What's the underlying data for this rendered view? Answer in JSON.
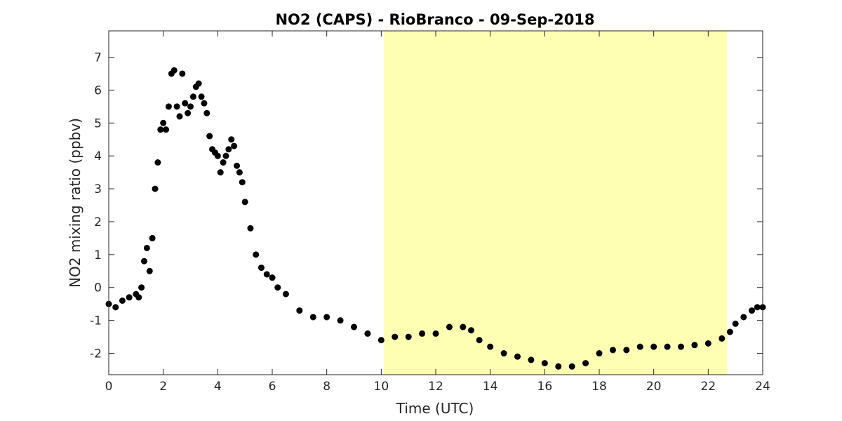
{
  "chart_data": {
    "type": "scatter",
    "title": "NO2 (CAPS) - RioBranco - 09-Sep-2018",
    "xlabel": "Time (UTC)",
    "ylabel": "NO2 mixing ratio (ppbv)",
    "xlim": [
      0,
      24
    ],
    "ylim": [
      -2.65,
      7.8
    ],
    "grid": false,
    "xticks": [
      0,
      2,
      4,
      6,
      8,
      10,
      12,
      14,
      16,
      18,
      20,
      22,
      24
    ],
    "yticks": [
      -2,
      -1,
      0,
      1,
      2,
      3,
      4,
      5,
      6,
      7
    ],
    "highlight_band": {
      "x_start": 10.1,
      "x_end": 22.7,
      "color": "#ffffb3"
    },
    "marker_color": "#000000",
    "series": [
      {
        "x": [
          0.0,
          0.25,
          0.5,
          0.75,
          1.0,
          1.1,
          1.2,
          1.3,
          1.4,
          1.5,
          1.6,
          1.7,
          1.8,
          1.9,
          2.0,
          2.1,
          2.2,
          2.3,
          2.4,
          2.5,
          2.6,
          2.7,
          2.8,
          2.9,
          3.0,
          3.1,
          3.2,
          3.3,
          3.4,
          3.5,
          3.6,
          3.7,
          3.8,
          3.9,
          4.0,
          4.1,
          4.2,
          4.3,
          4.4,
          4.5,
          4.6,
          4.7,
          4.8,
          4.9,
          5.0,
          5.2,
          5.4,
          5.6,
          5.8,
          6.0,
          6.2,
          6.5,
          7.0,
          7.5,
          8.0,
          8.5,
          9.0,
          9.5,
          10.0,
          10.5,
          11.0,
          11.5,
          12.0,
          12.5,
          13.0,
          13.3,
          13.6,
          14.0,
          14.5,
          15.0,
          15.5,
          16.0,
          16.5,
          17.0,
          17.5,
          18.0,
          18.5,
          19.0,
          19.5,
          20.0,
          20.5,
          21.0,
          21.5,
          22.0,
          22.5,
          22.8,
          23.0,
          23.3,
          23.6,
          23.8,
          24.0
        ],
        "y": [
          -0.5,
          -0.6,
          -0.4,
          -0.3,
          -0.2,
          -0.3,
          0.0,
          0.8,
          1.2,
          0.5,
          1.5,
          3.0,
          3.8,
          4.8,
          5.0,
          4.8,
          5.5,
          6.5,
          6.6,
          5.5,
          5.2,
          6.5,
          5.6,
          5.3,
          5.5,
          5.8,
          6.1,
          6.2,
          5.8,
          5.6,
          5.3,
          4.6,
          4.2,
          4.1,
          4.0,
          3.5,
          3.8,
          4.0,
          4.2,
          4.5,
          4.3,
          3.7,
          3.5,
          3.2,
          2.6,
          1.8,
          1.0,
          0.6,
          0.4,
          0.3,
          0.0,
          -0.2,
          -0.7,
          -0.9,
          -0.9,
          -1.0,
          -1.2,
          -1.4,
          -1.6,
          -1.5,
          -1.5,
          -1.4,
          -1.4,
          -1.2,
          -1.2,
          -1.3,
          -1.6,
          -1.8,
          -2.0,
          -2.1,
          -2.2,
          -2.3,
          -2.4,
          -2.4,
          -2.3,
          -2.0,
          -1.9,
          -1.9,
          -1.8,
          -1.8,
          -1.8,
          -1.8,
          -1.75,
          -1.7,
          -1.55,
          -1.35,
          -1.1,
          -0.9,
          -0.7,
          -0.6,
          -0.6
        ]
      }
    ]
  }
}
